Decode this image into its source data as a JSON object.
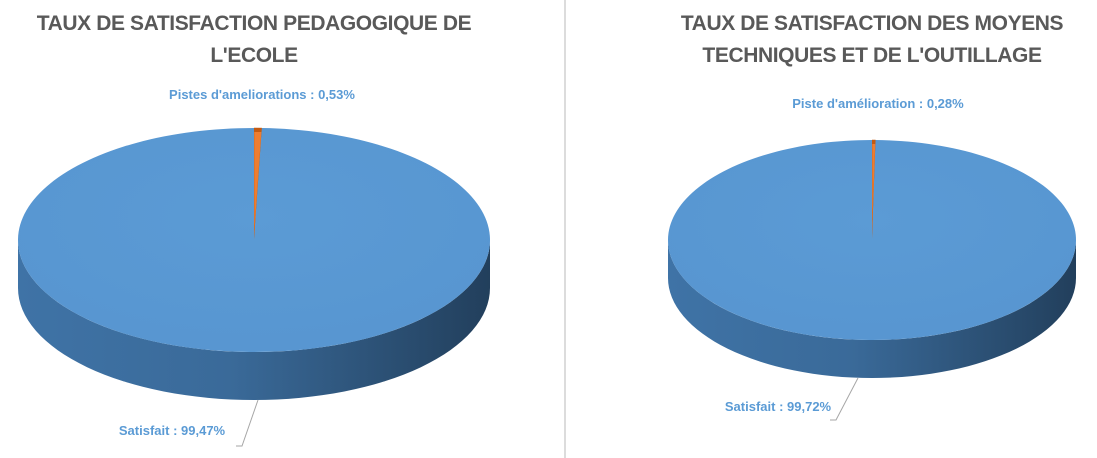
{
  "chart_data": [
    {
      "type": "pie3d",
      "title": "TAUX DE SATISFACTION PEDAGOGIQUE DE L'ECOLE",
      "categories": [
        "Pistes d'ameliorations",
        "Satisfait"
      ],
      "values": [
        0.53,
        99.47
      ],
      "value_labels": [
        "0,53%",
        "99,47%"
      ],
      "label_separator": " : ",
      "colors": [
        "#ed7d31",
        "#5b9bd5"
      ]
    },
    {
      "type": "pie3d",
      "title": "TAUX DE SATISFACTION DES MOYENS TECHNIQUES ET DE L'OUTILLAGE",
      "categories": [
        "Piste d'amélioration",
        "Satisfait"
      ],
      "values": [
        0.28,
        99.72
      ],
      "value_labels": [
        "0,28%",
        "99,72%"
      ],
      "label_separator": " : ",
      "colors": [
        "#ed7d31",
        "#5b9bd5"
      ]
    }
  ]
}
